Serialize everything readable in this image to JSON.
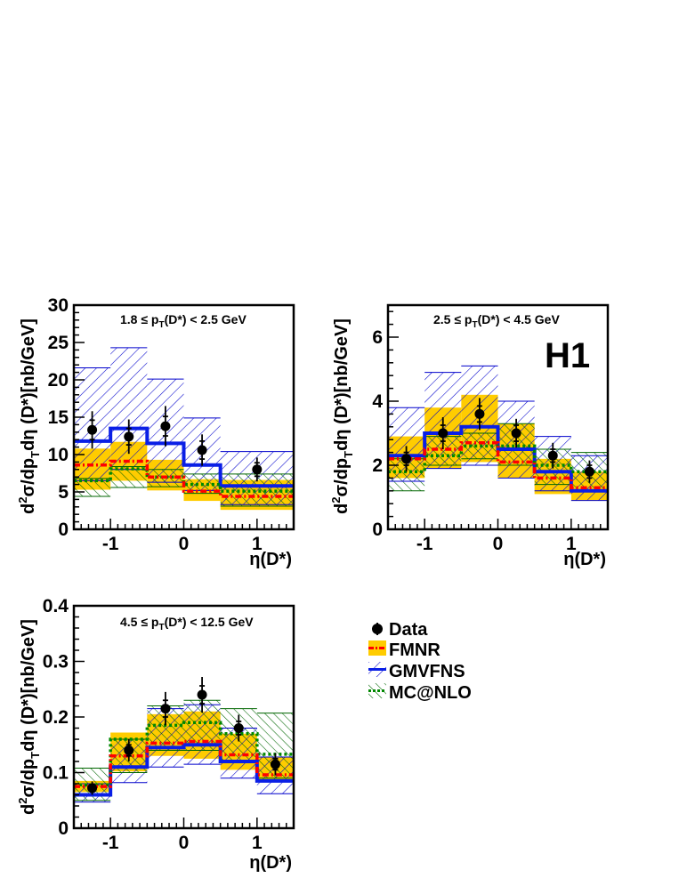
{
  "figure": {
    "experiment_label": "H1"
  },
  "legend": {
    "entries": [
      {
        "key": "data",
        "label": "Data"
      },
      {
        "key": "fmnr",
        "label": "FMNR"
      },
      {
        "key": "gmvfns",
        "label": "GMVFNS"
      },
      {
        "key": "mcnlo",
        "label": "MC@NLO"
      }
    ]
  },
  "colors": {
    "fmnr_band": "#ffcc00",
    "fmnr_line": "#ff0000",
    "gmvfns": "#0000cc",
    "gmvfns_line": "#0a1fe6",
    "mcnlo": "#006600",
    "mcnlo_line": "#008800",
    "data": "#000000"
  },
  "chart_data": [
    {
      "type": "histogram",
      "panel": "top-left",
      "range_label": {
        "pre": "1.8 ≤ p",
        "sub": "T",
        "post": "(D*) < 2.5 GeV"
      },
      "xlabel": "η(D*)",
      "ylabel": {
        "pre": "d",
        "sup": "2",
        "mid": "σ/dp",
        "sub": "T",
        "post": "dη (D*)[nb/GeV]"
      },
      "xlim": [
        -1.5,
        1.5
      ],
      "ylim": [
        0,
        30
      ],
      "xticks": [
        -1,
        0,
        1
      ],
      "xtick_labels": [
        "-1",
        "0",
        "1"
      ],
      "yticks": [
        0,
        5,
        10,
        15,
        20,
        25,
        30
      ],
      "ytick_labels": [
        "0",
        "5",
        "10",
        "15",
        "20",
        "25",
        "30"
      ],
      "bins": [
        -1.5,
        -1.0,
        -0.5,
        0.0,
        0.5,
        1.5
      ],
      "data": {
        "x": [
          -1.25,
          -0.75,
          -0.25,
          0.25,
          1.0
        ],
        "y": [
          13.3,
          12.4,
          13.8,
          10.6,
          8.0
        ],
        "err_stat": [
          1.3,
          1.1,
          1.3,
          1.2,
          0.9
        ],
        "err_tot": [
          2.5,
          2.3,
          2.7,
          2.1,
          1.6
        ]
      },
      "fmnr": {
        "central": [
          8.6,
          9.1,
          7.0,
          5.1,
          4.4
        ],
        "low": [
          5.3,
          6.5,
          5.2,
          3.8,
          2.6
        ],
        "high": [
          10.8,
          11.7,
          9.3,
          6.7,
          6.6
        ]
      },
      "gmvfns": {
        "central": [
          11.8,
          13.5,
          11.5,
          8.6,
          5.8
        ],
        "low": [
          6.5,
          8.0,
          6.3,
          5.2,
          3.3
        ],
        "high": [
          21.6,
          24.3,
          20.1,
          14.9,
          10.4
        ]
      },
      "mcnlo": {
        "central": [
          6.5,
          8.1,
          7.0,
          6.0,
          5.1
        ],
        "low": [
          4.4,
          5.6,
          5.7,
          4.8,
          3.1
        ],
        "high": [
          6.8,
          8.4,
          8.0,
          7.4,
          7.4
        ]
      }
    },
    {
      "type": "histogram",
      "panel": "top-right",
      "range_label": {
        "pre": "2.5 ≤ p",
        "sub": "T",
        "post": "(D*) < 4.5 GeV"
      },
      "xlabel": "η(D*)",
      "ylabel": {
        "pre": "d",
        "sup": "2",
        "mid": "σ/dp",
        "sub": "T",
        "post": "dη (D*)[nb/GeV]"
      },
      "xlim": [
        -1.5,
        1.5
      ],
      "ylim": [
        0,
        7
      ],
      "xticks": [
        -1,
        0,
        1
      ],
      "xtick_labels": [
        "-1",
        "0",
        "1"
      ],
      "yticks": [
        0,
        2,
        4,
        6
      ],
      "ytick_labels": [
        "0",
        "2",
        "4",
        "6"
      ],
      "bins": [
        -1.5,
        -1.0,
        -0.5,
        0.0,
        0.5,
        1.0,
        1.5
      ],
      "data": {
        "x": [
          -1.25,
          -0.75,
          -0.25,
          0.25,
          0.75,
          1.25
        ],
        "y": [
          2.2,
          3.0,
          3.6,
          3.0,
          2.3,
          1.8
        ],
        "err_stat": [
          0.2,
          0.25,
          0.25,
          0.25,
          0.2,
          0.2
        ],
        "err_tot": [
          0.4,
          0.5,
          0.5,
          0.45,
          0.4,
          0.35
        ]
      },
      "fmnr": {
        "central": [
          2.2,
          2.5,
          2.7,
          2.1,
          1.6,
          1.3
        ],
        "low": [
          1.6,
          1.9,
          2.1,
          1.6,
          1.1,
          0.9
        ],
        "high": [
          2.9,
          3.8,
          4.2,
          3.3,
          2.2,
          1.8
        ]
      },
      "gmvfns": {
        "central": [
          2.3,
          3.0,
          3.2,
          2.5,
          1.8,
          1.2
        ],
        "low": [
          1.5,
          1.9,
          2.0,
          1.6,
          1.2,
          0.9
        ],
        "high": [
          3.8,
          4.9,
          5.1,
          4.0,
          2.9,
          2.3
        ]
      },
      "mcnlo": {
        "central": [
          1.8,
          2.3,
          2.6,
          2.6,
          2.0,
          1.8
        ],
        "low": [
          1.2,
          2.0,
          2.2,
          2.0,
          1.4,
          1.2
        ],
        "high": [
          2.2,
          2.9,
          3.0,
          3.3,
          2.5,
          2.4
        ]
      }
    },
    {
      "type": "histogram",
      "panel": "bottom-left",
      "range_label": {
        "pre": "4.5 ≤ p",
        "sub": "T",
        "post": "(D*) < 12.5 GeV"
      },
      "xlabel": "η(D*)",
      "ylabel": {
        "pre": "d",
        "sup": "2",
        "mid": "σ/dp",
        "sub": "T",
        "post": "dη (D*)[nb/GeV]"
      },
      "xlim": [
        -1.5,
        1.5
      ],
      "ylim": [
        0,
        0.4
      ],
      "xticks": [
        -1,
        0,
        1
      ],
      "xtick_labels": [
        "-1",
        "0",
        "1"
      ],
      "yticks": [
        0,
        0.1,
        0.2,
        0.3,
        0.4
      ],
      "ytick_labels": [
        "0",
        "0.1",
        "0.2",
        "0.3",
        "0.4"
      ],
      "bins": [
        -1.5,
        -1.0,
        -0.5,
        0.0,
        0.5,
        1.0,
        1.5
      ],
      "data": {
        "x": [
          -1.25,
          -0.75,
          -0.25,
          0.25,
          0.75,
          1.25
        ],
        "y": [
          0.072,
          0.14,
          0.215,
          0.24,
          0.18,
          0.115
        ],
        "err_stat": [
          0.006,
          0.01,
          0.015,
          0.016,
          0.012,
          0.01
        ],
        "err_tot": [
          0.012,
          0.02,
          0.03,
          0.032,
          0.024,
          0.02
        ]
      },
      "fmnr": {
        "central": [
          0.075,
          0.13,
          0.153,
          0.156,
          0.132,
          0.096
        ],
        "low": [
          0.065,
          0.102,
          0.13,
          0.125,
          0.105,
          0.085
        ],
        "high": [
          0.085,
          0.172,
          0.205,
          0.21,
          0.17,
          0.128
        ]
      },
      "gmvfns": {
        "central": [
          0.06,
          0.11,
          0.145,
          0.15,
          0.12,
          0.085
        ],
        "low": [
          0.047,
          0.082,
          0.11,
          0.115,
          0.09,
          0.062
        ],
        "high": [
          0.08,
          0.16,
          0.215,
          0.222,
          0.18,
          0.128
        ]
      },
      "mcnlo": {
        "central": [
          0.078,
          0.16,
          0.185,
          0.19,
          0.17,
          0.133
        ],
        "low": [
          0.05,
          0.1,
          0.14,
          0.14,
          0.12,
          0.09
        ],
        "high": [
          0.108,
          0.16,
          0.22,
          0.23,
          0.215,
          0.207
        ]
      }
    }
  ]
}
